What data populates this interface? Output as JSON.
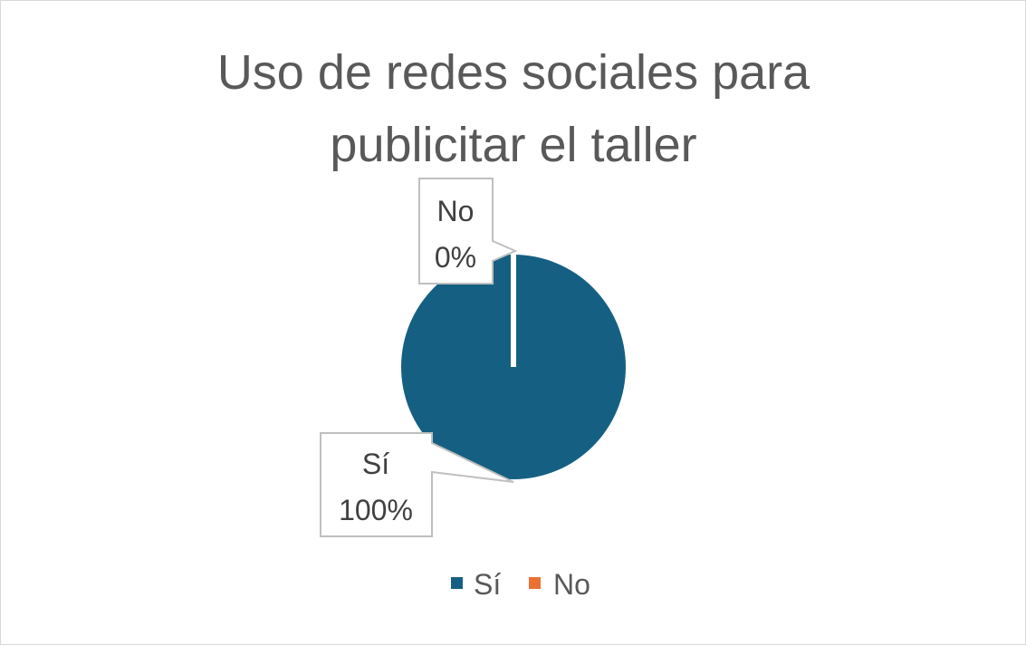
{
  "chart_data": {
    "type": "pie",
    "title": [
      "Uso de redes sociales para",
      "publicitar el taller"
    ],
    "categories": [
      "Sí",
      "No"
    ],
    "values": [
      100,
      0
    ],
    "data_labels": [
      {
        "category": "Sí",
        "percent": "100%"
      },
      {
        "category": "No",
        "percent": "0%"
      }
    ],
    "colors": [
      "#156082",
      "#E97132"
    ],
    "legend": {
      "position": "bottom",
      "entries": [
        {
          "name": "Sí",
          "color": "#156082"
        },
        {
          "name": "No",
          "color": "#E97132"
        }
      ]
    }
  }
}
